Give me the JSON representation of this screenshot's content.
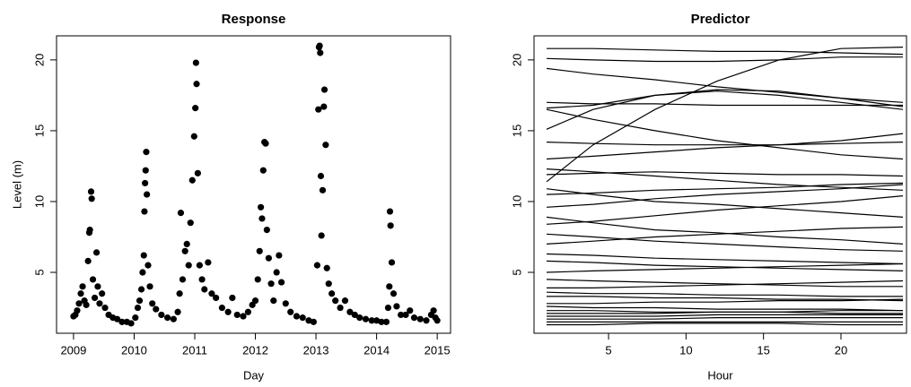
{
  "chart_data": [
    {
      "type": "scatter",
      "title": "Response",
      "x_label": "Day",
      "y_label": "Level (m)",
      "color": "#000000",
      "xlim": [
        2008.72,
        2015.22
      ],
      "xticks": [
        2009,
        2010,
        2011,
        2012,
        2013,
        2014,
        2015
      ],
      "ylim": [
        0.7,
        21.7
      ],
      "yticks": [
        5,
        10,
        15,
        20
      ],
      "x": [
        2009.0,
        2009.03,
        2009.06,
        2009.09,
        2009.12,
        2009.15,
        2009.18,
        2009.21,
        2009.24,
        2009.26,
        2009.27,
        2009.29,
        2009.3,
        2009.32,
        2009.35,
        2009.38,
        2009.4,
        2009.43,
        2009.47,
        2009.52,
        2009.58,
        2009.65,
        2009.72,
        2009.8,
        2009.88,
        2009.95,
        2010.02,
        2010.06,
        2010.09,
        2010.12,
        2010.14,
        2010.16,
        2010.17,
        2010.18,
        2010.19,
        2010.2,
        2010.21,
        2010.23,
        2010.26,
        2010.3,
        2010.36,
        2010.45,
        2010.55,
        2010.65,
        2010.72,
        2010.75,
        2010.77,
        2010.8,
        2010.84,
        2010.87,
        2010.9,
        2010.93,
        2010.96,
        2010.99,
        2011.01,
        2011.02,
        2011.03,
        2011.05,
        2011.08,
        2011.12,
        2011.16,
        2011.22,
        2011.28,
        2011.35,
        2011.45,
        2011.55,
        2011.62,
        2011.7,
        2011.8,
        2011.88,
        2011.95,
        2012.0,
        2012.04,
        2012.07,
        2012.09,
        2012.11,
        2012.13,
        2012.15,
        2012.17,
        2012.19,
        2012.22,
        2012.26,
        2012.3,
        2012.35,
        2012.39,
        2012.43,
        2012.5,
        2012.58,
        2012.68,
        2012.78,
        2012.88,
        2012.96,
        2013.02,
        2013.04,
        2013.05,
        2013.06,
        2013.07,
        2013.08,
        2013.09,
        2013.11,
        2013.13,
        2013.14,
        2013.16,
        2013.18,
        2013.21,
        2013.26,
        2013.32,
        2013.4,
        2013.48,
        2013.56,
        2013.64,
        2013.72,
        2013.82,
        2013.92,
        2014.0,
        2014.08,
        2014.16,
        2014.19,
        2014.21,
        2014.22,
        2014.23,
        2014.25,
        2014.28,
        2014.33,
        2014.4,
        2014.48,
        2014.55,
        2014.62,
        2014.72,
        2014.82,
        2014.9,
        2014.94,
        2014.97,
        2015.0
      ],
      "values": [
        1.9,
        2.0,
        2.3,
        2.8,
        3.5,
        4.0,
        3.0,
        2.7,
        5.8,
        7.8,
        8.0,
        10.7,
        10.2,
        4.5,
        3.2,
        6.4,
        4.0,
        2.8,
        3.5,
        2.5,
        2.0,
        1.8,
        1.7,
        1.5,
        1.5,
        1.4,
        1.8,
        2.5,
        3.0,
        3.8,
        5.0,
        6.2,
        9.3,
        11.3,
        12.2,
        13.5,
        10.5,
        5.5,
        4.0,
        2.8,
        2.4,
        2.0,
        1.8,
        1.7,
        2.2,
        3.5,
        9.2,
        4.5,
        6.5,
        7.0,
        5.5,
        8.5,
        11.5,
        14.6,
        16.6,
        19.8,
        18.3,
        12.0,
        5.5,
        4.5,
        3.8,
        5.7,
        3.5,
        3.2,
        2.5,
        2.2,
        3.2,
        2.0,
        1.9,
        2.2,
        2.7,
        3.0,
        4.5,
        6.5,
        9.6,
        8.8,
        12.2,
        14.2,
        14.1,
        8.0,
        6.0,
        4.2,
        3.0,
        5.0,
        6.2,
        4.3,
        2.8,
        2.2,
        1.9,
        1.8,
        1.6,
        1.5,
        5.5,
        16.5,
        20.9,
        21.0,
        20.5,
        11.8,
        7.6,
        10.8,
        16.7,
        17.9,
        14.0,
        5.3,
        4.2,
        3.5,
        3.0,
        2.5,
        3.0,
        2.2,
        2.0,
        1.8,
        1.7,
        1.6,
        1.6,
        1.5,
        1.5,
        2.5,
        4.0,
        9.3,
        8.3,
        5.7,
        3.5,
        2.6,
        2.0,
        2.0,
        2.3,
        1.8,
        1.7,
        1.6,
        2.0,
        2.3,
        1.8,
        1.6
      ]
    },
    {
      "type": "line",
      "title": "Predictor",
      "x_label": "Hour",
      "color": "#000000",
      "xlim": [
        0.19,
        24.23
      ],
      "xticks": [
        5,
        10,
        15,
        20
      ],
      "ylim": [
        0.7,
        21.7
      ],
      "yticks": [
        5,
        10,
        15,
        20
      ],
      "x": [
        1,
        4,
        8,
        12,
        16,
        20,
        24
      ],
      "series": [
        {
          "values": [
            20.8,
            20.8,
            20.7,
            20.6,
            20.6,
            20.5,
            20.4
          ]
        },
        {
          "values": [
            20.1,
            20.0,
            19.9,
            19.9,
            20.0,
            20.2,
            20.2
          ]
        },
        {
          "values": [
            19.4,
            19.0,
            18.6,
            18.1,
            17.7,
            17.3,
            17.0
          ]
        },
        {
          "values": [
            11.4,
            14.0,
            16.5,
            18.5,
            20.0,
            20.8,
            20.9
          ]
        },
        {
          "values": [
            17.0,
            16.9,
            16.9,
            16.8,
            16.8,
            16.8,
            16.8
          ]
        },
        {
          "values": [
            16.6,
            16.8,
            17.5,
            17.9,
            17.8,
            17.3,
            16.7
          ]
        },
        {
          "values": [
            16.5,
            15.8,
            15.0,
            14.3,
            13.8,
            13.3,
            13.0
          ]
        },
        {
          "values": [
            15.1,
            16.5,
            17.5,
            17.8,
            17.5,
            17.0,
            16.5
          ]
        },
        {
          "values": [
            14.2,
            14.1,
            14.0,
            14.0,
            14.0,
            14.1,
            14.2
          ]
        },
        {
          "values": [
            13.0,
            13.2,
            13.5,
            13.8,
            14.0,
            14.3,
            14.8
          ]
        },
        {
          "values": [
            12.3,
            12.1,
            11.8,
            11.5,
            11.2,
            11.0,
            10.8
          ]
        },
        {
          "values": [
            11.9,
            12.0,
            12.1,
            12.0,
            11.9,
            11.9,
            11.8
          ]
        },
        {
          "values": [
            10.9,
            10.5,
            10.0,
            9.8,
            9.5,
            9.2,
            8.9
          ]
        },
        {
          "values": [
            10.5,
            10.6,
            10.8,
            10.9,
            11.0,
            11.2,
            11.3
          ]
        },
        {
          "values": [
            9.6,
            9.8,
            10.2,
            10.5,
            10.7,
            10.9,
            11.2
          ]
        },
        {
          "values": [
            8.9,
            8.5,
            8.0,
            7.8,
            7.5,
            7.3,
            7.0
          ]
        },
        {
          "values": [
            8.4,
            8.6,
            9.0,
            9.4,
            9.7,
            10.0,
            10.4
          ]
        },
        {
          "values": [
            7.7,
            7.5,
            7.2,
            7.0,
            6.8,
            6.6,
            6.5
          ]
        },
        {
          "values": [
            7.0,
            7.2,
            7.5,
            7.7,
            7.9,
            8.1,
            8.2
          ]
        },
        {
          "values": [
            6.3,
            6.2,
            6.0,
            5.9,
            5.8,
            5.7,
            5.6
          ]
        },
        {
          "values": [
            5.8,
            5.7,
            5.5,
            5.4,
            5.3,
            5.2,
            5.1
          ]
        },
        {
          "values": [
            5.0,
            5.1,
            5.2,
            5.3,
            5.4,
            5.5,
            5.6
          ]
        },
        {
          "values": [
            4.5,
            4.4,
            4.3,
            4.2,
            4.1,
            4.0,
            4.0
          ]
        },
        {
          "values": [
            3.9,
            3.9,
            4.0,
            4.1,
            4.2,
            4.3,
            4.4
          ]
        },
        {
          "values": [
            3.6,
            3.5,
            3.5,
            3.4,
            3.4,
            3.3,
            3.3
          ]
        },
        {
          "values": [
            3.3,
            3.3,
            3.2,
            3.2,
            3.1,
            3.1,
            3.0
          ]
        },
        {
          "values": [
            2.8,
            2.8,
            2.9,
            2.9,
            3.0,
            3.0,
            3.1
          ]
        },
        {
          "values": [
            2.6,
            2.5,
            2.5,
            2.4,
            2.4,
            2.4,
            2.3
          ]
        },
        {
          "values": [
            2.3,
            2.3,
            2.2,
            2.2,
            2.2,
            2.1,
            2.1
          ]
        },
        {
          "values": [
            2.1,
            2.1,
            2.1,
            2.2,
            2.2,
            2.3,
            2.3
          ]
        },
        {
          "values": [
            1.9,
            1.9,
            1.9,
            2.0,
            2.0,
            2.0,
            2.0
          ]
        },
        {
          "values": [
            1.7,
            1.7,
            1.7,
            1.8,
            1.8,
            1.8,
            1.8
          ]
        },
        {
          "values": [
            1.5,
            1.5,
            1.5,
            1.5,
            1.5,
            1.5,
            1.5
          ]
        },
        {
          "values": [
            1.3,
            1.3,
            1.4,
            1.4,
            1.4,
            1.3,
            1.3
          ]
        }
      ]
    }
  ]
}
